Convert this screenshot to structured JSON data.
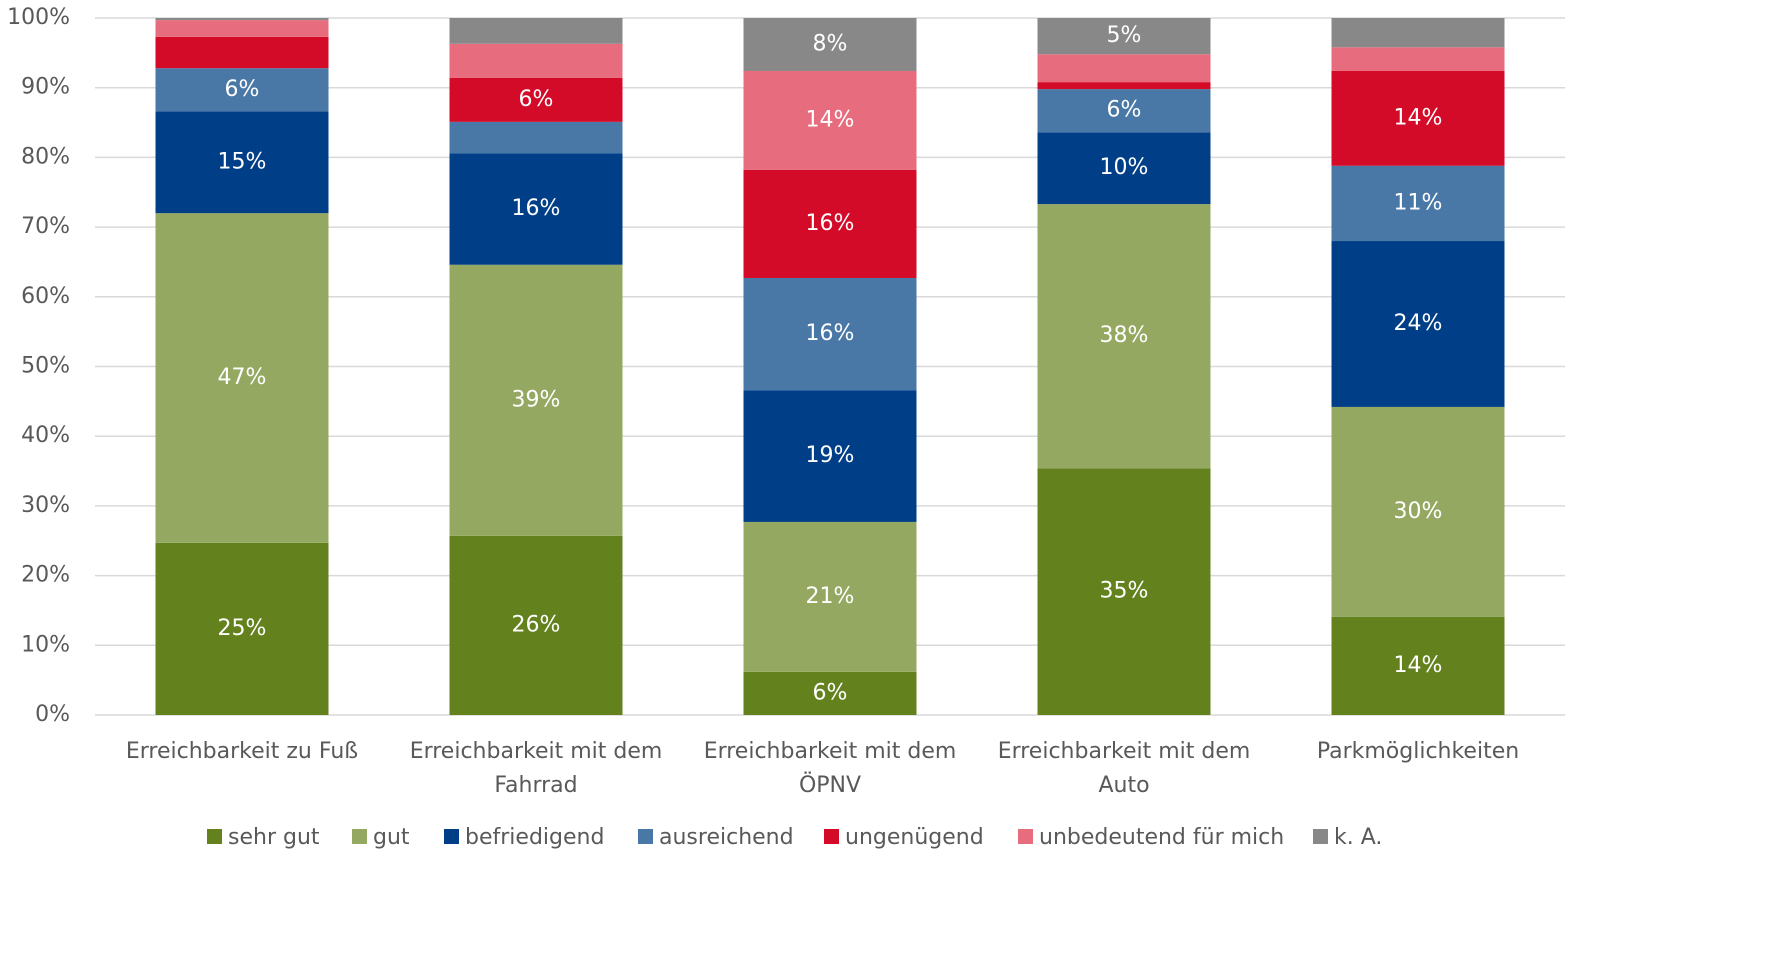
{
  "chart_data": {
    "type": "stacked_bar",
    "categories": [
      "Erreichbarkeit zu Fuß",
      "Erreichbarkeit mit dem Fahrrad",
      "Erreichbarkeit mit dem ÖPNV",
      "Erreichbarkeit mit dem Auto",
      "Parkmöglichkeiten"
    ],
    "series": [
      {
        "name": "sehr gut",
        "color": "#63821e",
        "values": [
          24.7,
          25.7,
          6.2,
          35.4,
          14.1
        ],
        "value_labels": [
          "25%",
          "26%",
          "6%",
          "35%",
          "14%"
        ]
      },
      {
        "name": "gut",
        "color": "#94a862",
        "values": [
          47.3,
          38.9,
          21.5,
          37.9,
          30.1
        ],
        "value_labels": [
          "47%",
          "39%",
          "21%",
          "38%",
          "30%"
        ]
      },
      {
        "name": "befriedigend",
        "color": "#003f87",
        "values": [
          14.6,
          16.0,
          18.9,
          10.3,
          23.8
        ],
        "value_labels": [
          "15%",
          "16%",
          "19%",
          "10%",
          "24%"
        ]
      },
      {
        "name": "ausreichend",
        "color": "#4a78a6",
        "values": [
          6.2,
          4.5,
          16.1,
          6.2,
          10.8
        ],
        "value_labels": [
          "6%",
          null,
          "16%",
          "6%",
          "11%"
        ]
      },
      {
        "name": "ungenügend",
        "color": "#d40a29",
        "values": [
          4.5,
          6.3,
          15.5,
          1.0,
          13.6
        ],
        "value_labels": [
          null,
          "6%",
          "16%",
          null,
          "14%"
        ]
      },
      {
        "name": "unbedeutend für mich",
        "color": "#e76c7e",
        "values": [
          2.4,
          4.9,
          14.2,
          4.0,
          3.4
        ],
        "value_labels": [
          null,
          null,
          "14%",
          null,
          null
        ]
      },
      {
        "name": "k. A.",
        "color": "#888888",
        "values": [
          0.3,
          3.7,
          7.6,
          5.2,
          4.2
        ],
        "value_labels": [
          null,
          null,
          "8%",
          "5%",
          null
        ]
      }
    ],
    "ylim": [
      0,
      100
    ],
    "yticks": [
      {
        "value": 0,
        "label": "0%"
      },
      {
        "value": 10,
        "label": "10%"
      },
      {
        "value": 20,
        "label": "20%"
      },
      {
        "value": 30,
        "label": "30%"
      },
      {
        "value": 40,
        "label": "40%"
      },
      {
        "value": 50,
        "label": "50%"
      },
      {
        "value": 60,
        "label": "60%"
      },
      {
        "value": 70,
        "label": "70%"
      },
      {
        "value": 80,
        "label": "80%"
      },
      {
        "value": 90,
        "label": "90%"
      },
      {
        "value": 100,
        "label": "100%"
      }
    ],
    "grid": true,
    "legend": "bottom"
  }
}
